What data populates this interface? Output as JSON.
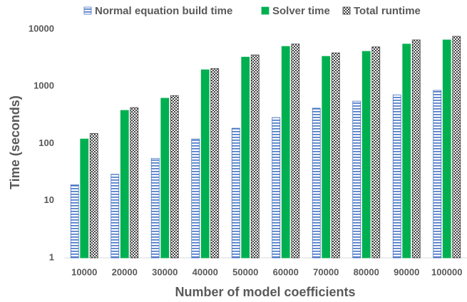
{
  "chart_data": {
    "type": "bar",
    "y_label": "Time (seconds)",
    "x_label": "Number of model coefficients",
    "categories": [
      "10000",
      "20000",
      "30000",
      "40000",
      "50000",
      "60000",
      "70000",
      "80000",
      "90000",
      "100000"
    ],
    "series": [
      {
        "name": "Normal equation build time",
        "color": "#4472c4",
        "pattern": "hstripe",
        "values": [
          19,
          29,
          55,
          120,
          185,
          285,
          415,
          550,
          710,
          850
        ]
      },
      {
        "name": "Solver time",
        "color": "#00b050",
        "pattern": "solid",
        "values": [
          120,
          380,
          620,
          1950,
          3250,
          5000,
          3350,
          4100,
          5500,
          6500
        ]
      },
      {
        "name": "Total runtime",
        "color": "#404040",
        "pattern": "dots",
        "values": [
          150,
          425,
          690,
          2050,
          3550,
          5500,
          3850,
          4900,
          6500,
          7500
        ]
      }
    ],
    "ylim": [
      1,
      10000
    ],
    "yticks": [
      1,
      10,
      100,
      1000,
      10000
    ],
    "log_scale": true,
    "grid": false,
    "legend": "top"
  }
}
